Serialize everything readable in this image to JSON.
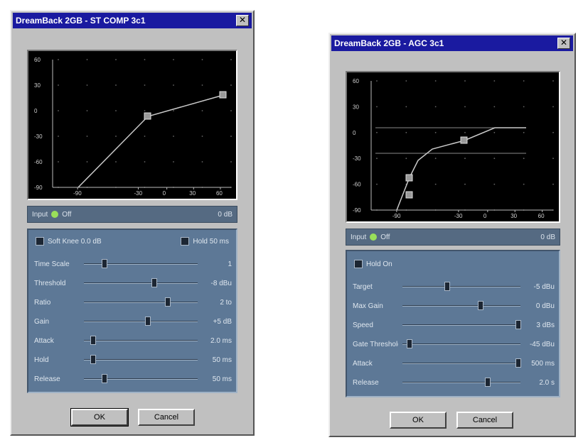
{
  "colors": {
    "title_bg": "#1a1aa0",
    "panel_bg": "#5d7896",
    "graph_bg": "#000000",
    "curve": "#c9c9c9",
    "led": "#9ae05a"
  },
  "window1": {
    "title": "DreamBack 2GB - ST COMP 3c1",
    "close_glyph": "✕",
    "graph": {
      "y_ticks": [
        "60",
        "30",
        "0",
        "-30",
        "-60",
        "-90"
      ],
      "x_ticks": [
        "-90",
        "-30",
        "0",
        "30",
        "60"
      ]
    },
    "status": {
      "left": "Input",
      "mid": "Off",
      "right": "0 dB"
    },
    "options": {
      "left": "Soft Knee 0.0 dB",
      "right": "Hold 50 ms"
    },
    "rows": [
      {
        "label": "Time Scale",
        "value": "1",
        "pos": 0.18
      },
      {
        "label": "Threshold",
        "value": "-8 dBu",
        "pos": 0.62
      },
      {
        "label": "Ratio",
        "value": "2 to",
        "pos": 0.74
      },
      {
        "label": "Gain",
        "value": "+5 dB",
        "pos": 0.56
      },
      {
        "label": "Attack",
        "value": "2.0 ms",
        "pos": 0.08
      },
      {
        "label": "Hold",
        "value": "50 ms",
        "pos": 0.08
      },
      {
        "label": "Release",
        "value": "50 ms",
        "pos": 0.18
      }
    ],
    "buttons": {
      "ok": "OK",
      "cancel": "Cancel"
    }
  },
  "window2": {
    "title": "DreamBack 2GB - AGC 3c1",
    "close_glyph": "✕",
    "graph": {
      "y_ticks": [
        "60",
        "30",
        "0",
        "-30",
        "-60",
        "-90"
      ],
      "x_ticks": [
        "-90",
        "-30",
        "0",
        "30",
        "60"
      ]
    },
    "status": {
      "left": "Input",
      "mid": "Off",
      "right": "0 dB"
    },
    "options": {
      "left": "Hold On"
    },
    "rows": [
      {
        "label": "Target",
        "value": "-5 dBu",
        "pos": 0.38
      },
      {
        "label": "Max Gain",
        "value": "0 dBu",
        "pos": 0.66
      },
      {
        "label": "Speed",
        "value": "3 dBs",
        "pos": 0.98
      },
      {
        "label": "Gate Threshold",
        "value": "-45 dBu",
        "pos": 0.06
      },
      {
        "label": "Attack",
        "value": "500 ms",
        "pos": 0.98
      },
      {
        "label": "Release",
        "value": "2.0 s",
        "pos": 0.72
      }
    ],
    "buttons": {
      "ok": "OK",
      "cancel": "Cancel"
    }
  }
}
